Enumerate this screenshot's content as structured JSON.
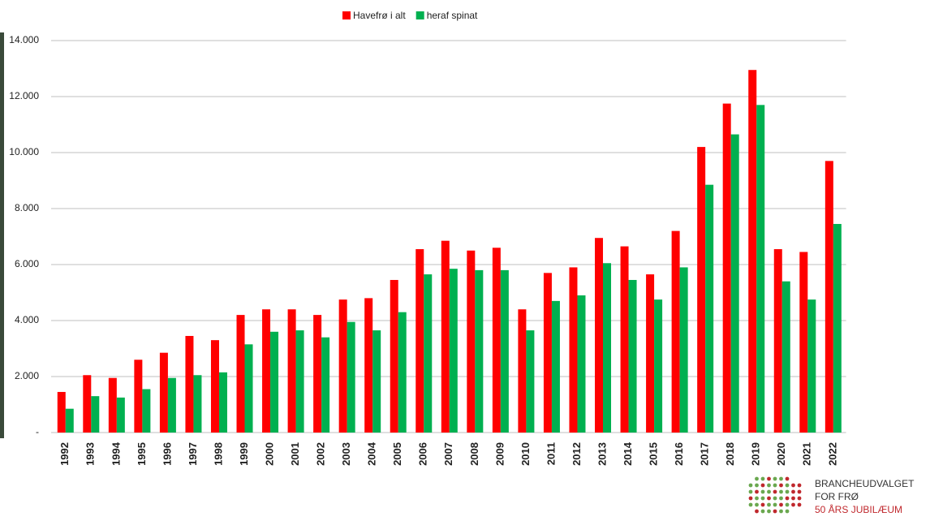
{
  "chart_data": {
    "type": "bar",
    "categories": [
      "1992",
      "1993",
      "1994",
      "1995",
      "1996",
      "1997",
      "1998",
      "1999",
      "2000",
      "2001",
      "2002",
      "2003",
      "2004",
      "2005",
      "2006",
      "2007",
      "2008",
      "2009",
      "2010",
      "2011",
      "2012",
      "2013",
      "2014",
      "2015",
      "2016",
      "2017",
      "2018",
      "2019",
      "2020",
      "2021",
      "2022"
    ],
    "series": [
      {
        "name": "Havefrø i alt",
        "color": "#ff0000",
        "values": [
          1450,
          2050,
          1950,
          2600,
          2850,
          3450,
          3300,
          4200,
          4400,
          4400,
          4200,
          4750,
          4800,
          5450,
          6550,
          6850,
          6500,
          6600,
          4400,
          5700,
          5900,
          6950,
          6650,
          5650,
          7200,
          10200,
          11750,
          12950,
          6550,
          6450,
          9700
        ]
      },
      {
        "name": "heraf spinat",
        "color": "#00b050",
        "values": [
          850,
          1300,
          1250,
          1550,
          1950,
          2050,
          2150,
          3150,
          3600,
          3650,
          3400,
          3950,
          3650,
          4300,
          5650,
          5850,
          5800,
          5800,
          3650,
          4700,
          4900,
          6050,
          5450,
          4750,
          5900,
          8850,
          10650,
          11700,
          5400,
          4750,
          7450
        ]
      }
    ],
    "ylim": [
      0,
      14000
    ],
    "yticks": [
      {
        "value": 0,
        "label": "-"
      },
      {
        "value": 2000,
        "label": "2.000"
      },
      {
        "value": 4000,
        "label": "4.000"
      },
      {
        "value": 6000,
        "label": "6.000"
      },
      {
        "value": 8000,
        "label": "8.000"
      },
      {
        "value": 10000,
        "label": "10.000"
      },
      {
        "value": 12000,
        "label": "12.000"
      },
      {
        "value": 14000,
        "label": "14.000"
      }
    ],
    "grid": true,
    "legend": "top"
  },
  "logo": {
    "line1": "BRANCHEUDVALGET",
    "line2": "FOR FRØ",
    "line3": "50 ÅRS JUBILÆUM"
  }
}
